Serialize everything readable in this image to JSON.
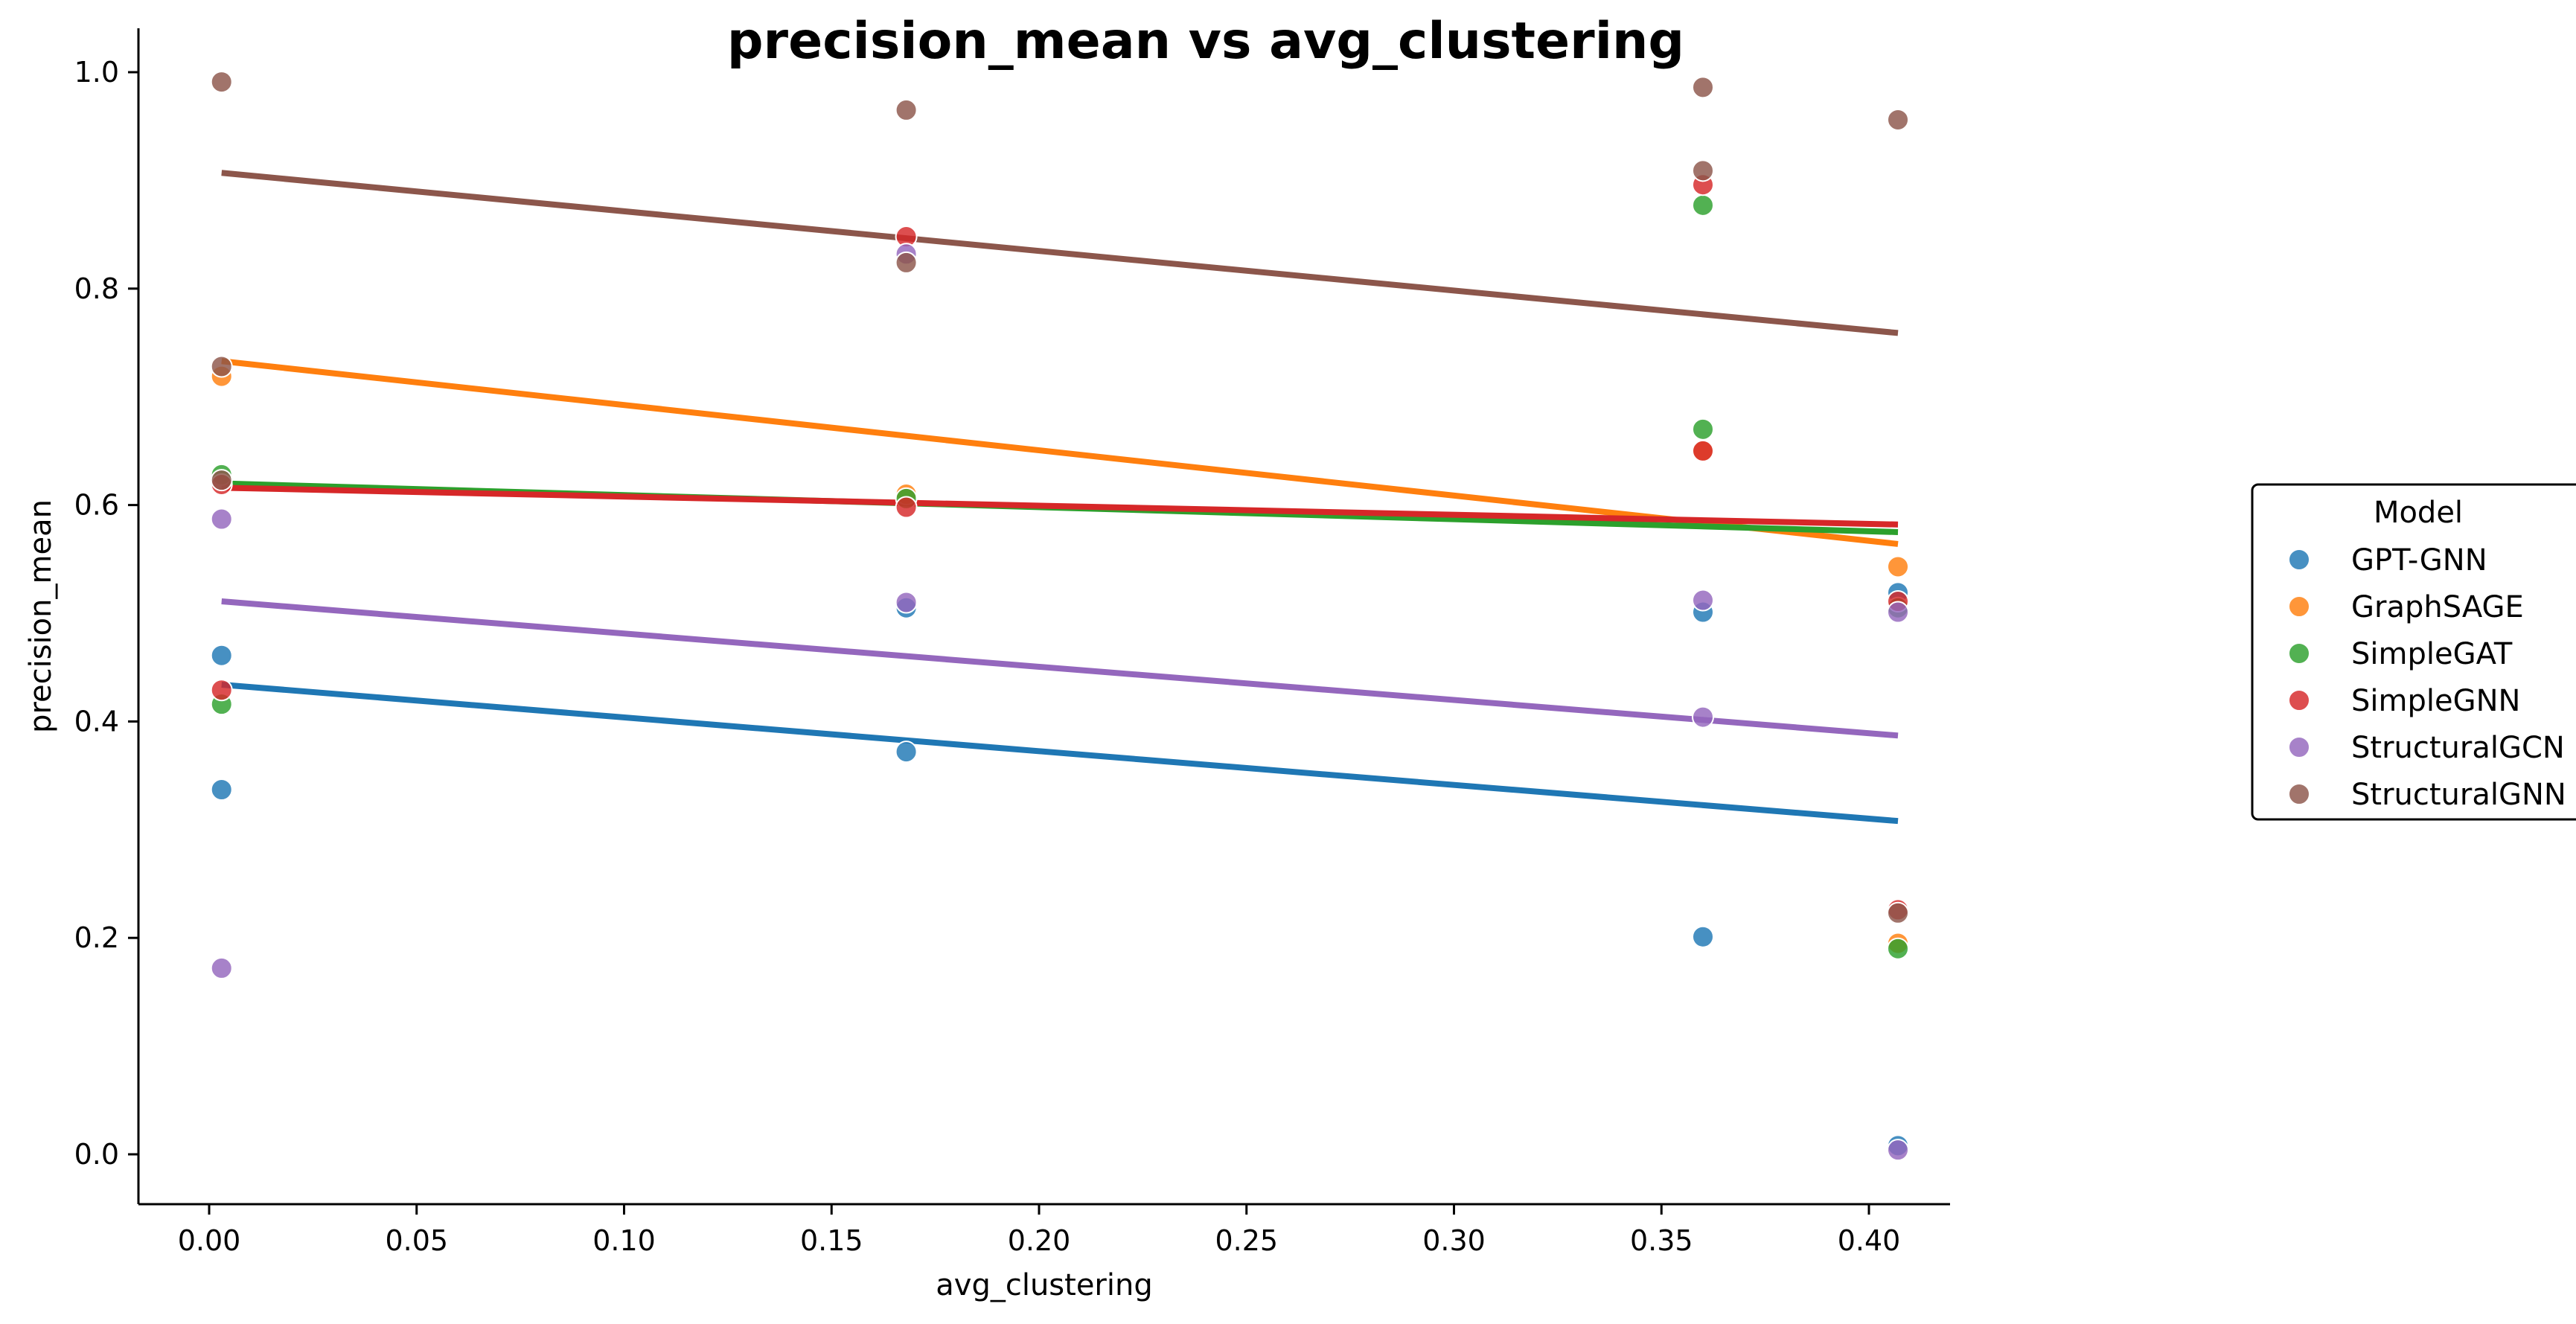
{
  "chart_data": {
    "type": "scatter",
    "title": "precision_mean vs avg_clustering",
    "xlabel": "avg_clustering",
    "ylabel": "precision_mean",
    "xlim": [
      -0.0175,
      0.428
    ],
    "ylim": [
      -0.045,
      1.04
    ],
    "x_ticks": [
      0.0,
      0.05,
      0.1,
      0.15,
      0.2,
      0.25,
      0.3,
      0.35,
      0.4
    ],
    "x_tick_labels": [
      "0.00",
      "0.05",
      "0.10",
      "0.15",
      "0.20",
      "0.25",
      "0.30",
      "0.35",
      "0.40"
    ],
    "y_ticks": [
      0.0,
      0.2,
      0.4,
      0.6,
      0.8,
      1.0
    ],
    "y_tick_labels": [
      "0.0",
      "0.2",
      "0.4",
      "0.6",
      "0.8",
      "1.0"
    ],
    "grid": false,
    "legend": {
      "title": "Model",
      "placement": "right"
    },
    "series": [
      {
        "name": "GPT-GNN",
        "color": "#1f77b4",
        "points": [
          [
            0.003,
            0.461
          ],
          [
            0.003,
            0.337
          ],
          [
            0.168,
            0.505
          ],
          [
            0.168,
            0.372
          ],
          [
            0.36,
            0.501
          ],
          [
            0.36,
            0.201
          ],
          [
            0.407,
            0.519
          ],
          [
            0.407,
            0.008
          ]
        ],
        "trend": [
          [
            0.003,
            0.434
          ],
          [
            0.407,
            0.308
          ]
        ]
      },
      {
        "name": "GraphSAGE",
        "color": "#ff7f0e",
        "points": [
          [
            0.003,
            0.719
          ],
          [
            0.168,
            0.61
          ],
          [
            0.36,
            0.65
          ],
          [
            0.407,
            0.543
          ],
          [
            0.407,
            0.195
          ]
        ],
        "trend": [
          [
            0.003,
            0.733
          ],
          [
            0.407,
            0.564
          ]
        ]
      },
      {
        "name": "SimpleGAT",
        "color": "#2ca02c",
        "points": [
          [
            0.003,
            0.628
          ],
          [
            0.003,
            0.416
          ],
          [
            0.168,
            0.606
          ],
          [
            0.36,
            0.877
          ],
          [
            0.36,
            0.67
          ],
          [
            0.407,
            0.505
          ],
          [
            0.407,
            0.19
          ]
        ],
        "trend": [
          [
            0.003,
            0.62
          ],
          [
            0.407,
            0.575
          ]
        ]
      },
      {
        "name": "SimpleGNN",
        "color": "#d62728",
        "points": [
          [
            0.003,
            0.619
          ],
          [
            0.003,
            0.429
          ],
          [
            0.168,
            0.848
          ],
          [
            0.168,
            0.598
          ],
          [
            0.36,
            0.896
          ],
          [
            0.36,
            0.65
          ],
          [
            0.407,
            0.511
          ],
          [
            0.407,
            0.226
          ]
        ],
        "trend": [
          [
            0.003,
            0.616
          ],
          [
            0.407,
            0.582
          ]
        ]
      },
      {
        "name": "StructuralGCN",
        "color": "#9467bd",
        "points": [
          [
            0.003,
            0.587
          ],
          [
            0.003,
            0.172
          ],
          [
            0.168,
            0.832
          ],
          [
            0.168,
            0.51
          ],
          [
            0.36,
            0.512
          ],
          [
            0.36,
            0.404
          ],
          [
            0.407,
            0.501
          ],
          [
            0.407,
            0.004
          ]
        ],
        "trend": [
          [
            0.003,
            0.511
          ],
          [
            0.407,
            0.387
          ]
        ]
      },
      {
        "name": "StructuralGNN",
        "color": "#8c564b",
        "points": [
          [
            0.003,
            0.991
          ],
          [
            0.003,
            0.728
          ],
          [
            0.003,
            0.623
          ],
          [
            0.168,
            0.965
          ],
          [
            0.168,
            0.824
          ],
          [
            0.36,
            0.986
          ],
          [
            0.36,
            0.909
          ],
          [
            0.407,
            0.956
          ],
          [
            0.407,
            0.223
          ]
        ],
        "trend": [
          [
            0.003,
            0.907
          ],
          [
            0.407,
            0.759
          ]
        ]
      }
    ]
  }
}
